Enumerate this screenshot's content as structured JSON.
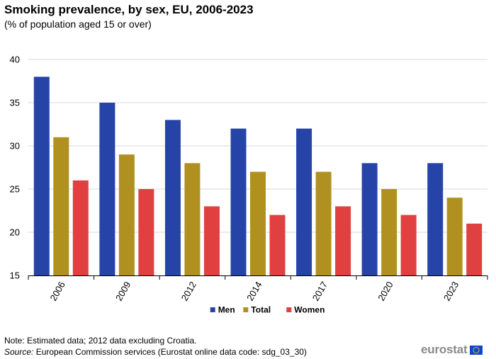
{
  "chart_data": {
    "type": "bar",
    "title": "Smoking prevalence, by sex, EU, 2006-2023",
    "subtitle": "(% of population  aged  15 or over)",
    "categories": [
      "2006",
      "2009",
      "2012",
      "2014",
      "2017",
      "2020",
      "2023"
    ],
    "series": [
      {
        "name": "Men",
        "color": "#2644a8",
        "values": [
          38,
          35,
          33,
          32,
          32,
          28,
          28
        ]
      },
      {
        "name": "Total",
        "color": "#b09120",
        "values": [
          31,
          29,
          28,
          27,
          27,
          25,
          24
        ]
      },
      {
        "name": "Women",
        "color": "#e04040",
        "values": [
          26,
          25,
          23,
          22,
          23,
          22,
          21
        ]
      }
    ],
    "ylim": [
      15,
      40
    ],
    "yticks": [
      15,
      20,
      25,
      30,
      35,
      40
    ],
    "xlabel": "",
    "ylabel": "",
    "grid": true,
    "legend_position": "bottom-center"
  },
  "footer": {
    "note": "Note: Estimated data; 2012 data excluding Croatia.",
    "source_label": "Source:",
    "source_text": " European Commission services (Eurostat online data code: sdg_03_30)",
    "logo_text": "eurostat"
  },
  "colors": {
    "flag_blue": "#0e47cb",
    "flag_star": "#ffd617"
  }
}
